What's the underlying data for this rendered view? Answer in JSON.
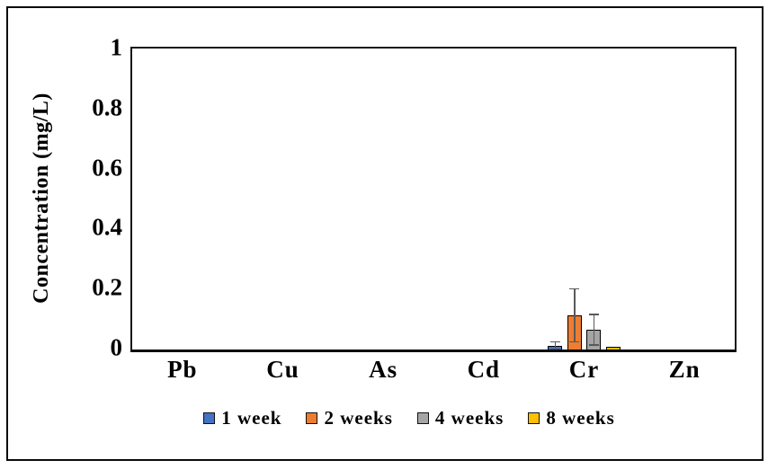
{
  "figure": {
    "background": "#ffffff",
    "border_color": "#0a0a0a",
    "text_color": "#000000"
  },
  "chart_data": {
    "type": "bar",
    "title": "",
    "xlabel": "",
    "ylabel": "Concentration (mg/L)",
    "ylim": [
      0,
      1
    ],
    "yticks": [
      0,
      0.2,
      0.4,
      0.6,
      0.8,
      1
    ],
    "ytick_labels": [
      "0",
      "0.2",
      "0.4",
      "0.6",
      "0.8",
      "1"
    ],
    "categories": [
      "Pb",
      "Cu",
      "As",
      "Cd",
      "Cr",
      "Zn"
    ],
    "series": [
      {
        "name": "1 week",
        "color": "#4472C4",
        "values": [
          0,
          0,
          0,
          0,
          0.012,
          0
        ],
        "errors": [
          0,
          0,
          0,
          0,
          0.015,
          0
        ]
      },
      {
        "name": "2 weeks",
        "color": "#ED7D31",
        "values": [
          0,
          0,
          0,
          0,
          0.113,
          0
        ],
        "errors": [
          0,
          0,
          0,
          0,
          0.09,
          0
        ]
      },
      {
        "name": "4 weeks",
        "color": "#A5A5A5",
        "values": [
          0,
          0,
          0,
          0,
          0.065,
          0
        ],
        "errors": [
          0,
          0,
          0,
          0,
          0.053,
          0
        ]
      },
      {
        "name": "8 weeks",
        "color": "#FFC000",
        "values": [
          0,
          0,
          0,
          0,
          0.008,
          0
        ],
        "errors": [
          0,
          0,
          0,
          0,
          0,
          0
        ]
      }
    ],
    "grid": false,
    "legend_position": "bottom",
    "error_bar_color": "#595959",
    "bar_outline_color": "#000000"
  }
}
